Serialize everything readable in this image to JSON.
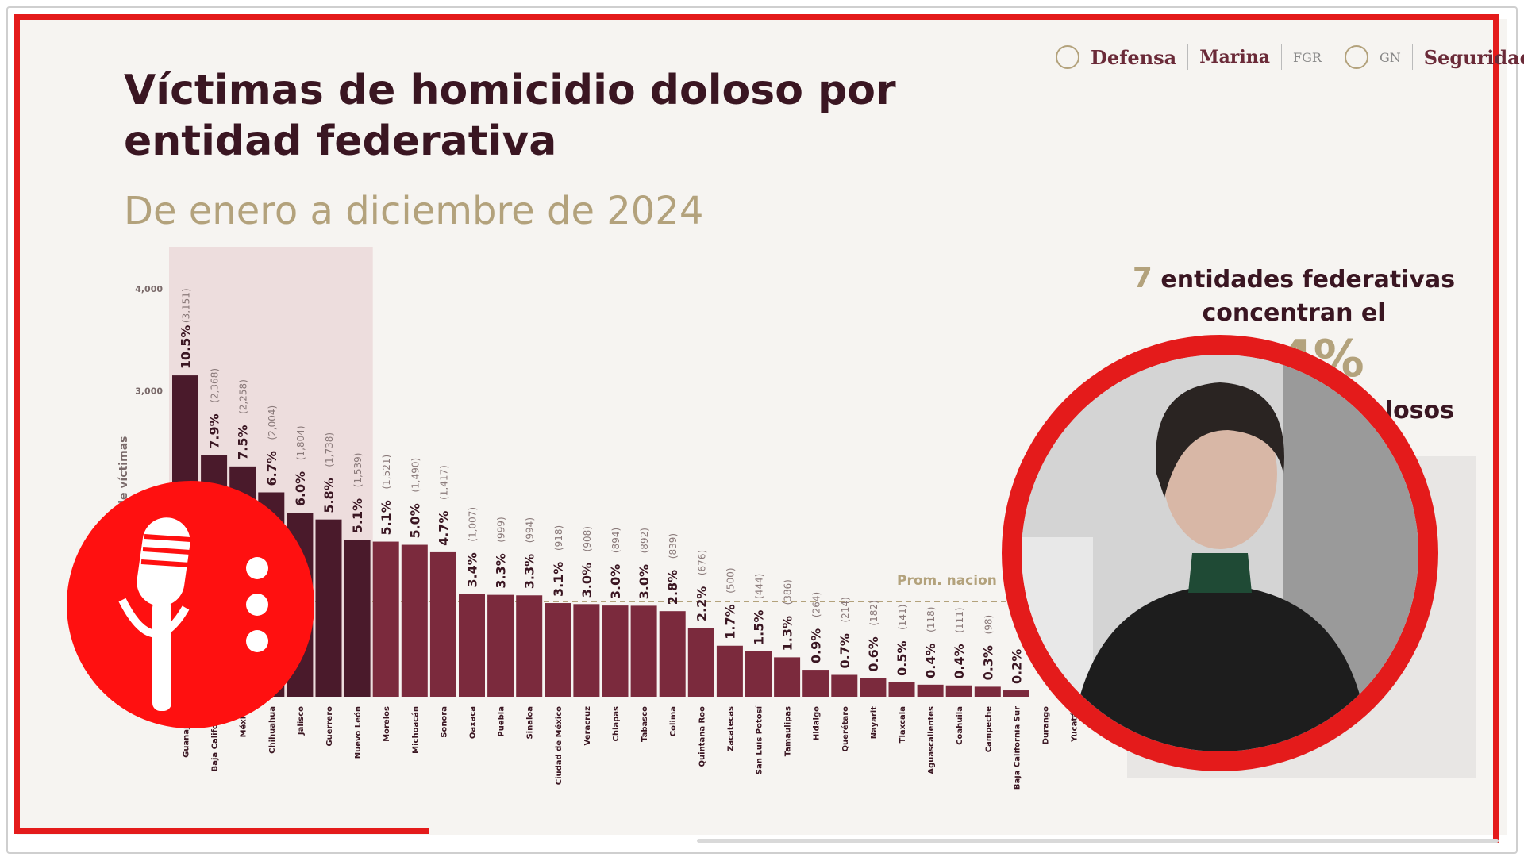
{
  "slide": {
    "title_line1": "Víctimas de homicidio doloso por",
    "title_line2": "entidad federativa",
    "subtitle": "De enero a diciembre de 2024"
  },
  "logos": {
    "defensa": "Defensa",
    "marina": "Marina",
    "fgr": "FGR",
    "gn": "GN",
    "seguridad": "Seguridad"
  },
  "side_panel": {
    "count": "7",
    "line1": "entidades federativas",
    "line2": "concentran el",
    "percent_partial": "2.4%",
    "line3_partial": "olosos"
  },
  "colors": {
    "bar_top7": "#4a1a2b",
    "bar_rest": "#7b2a3d",
    "highlight": "#e9d6d6",
    "title": "#3a1622",
    "accent_gold": "#b3a27c",
    "frame_red": "#e41b1b"
  },
  "icons": [
    "microphone-icon",
    "presenter-portrait"
  ],
  "chart_data": {
    "type": "bar",
    "ylabel": "de víctimas",
    "yticks": [
      3000,
      4000
    ],
    "ylim": [
      0,
      4000
    ],
    "avg_label": "Prom. nacion",
    "categories": [
      "Guanajuato",
      "Baja California",
      "México",
      "Chihuahua",
      "Jalisco",
      "Guerrero",
      "Nuevo León",
      "Morelos",
      "Michoacán",
      "Sonora",
      "Oaxaca",
      "Puebla",
      "Sinaloa",
      "Ciudad de México",
      "Veracruz",
      "Chiapas",
      "Tabasco",
      "Colima",
      "Quintana Roo",
      "Zacatecas",
      "San Luis Potosí",
      "Tamaulipas",
      "Hidalgo",
      "Querétaro",
      "Nayarit",
      "Tlaxcala",
      "Aguascalientes",
      "Coahuila",
      "Campeche",
      "Baja California Sur",
      "Durango",
      "Yucatán"
    ],
    "values": [
      3151,
      2368,
      2258,
      2004,
      1804,
      1738,
      1539,
      1521,
      1490,
      1417,
      1007,
      999,
      994,
      918,
      908,
      894,
      892,
      839,
      676,
      500,
      444,
      386,
      264,
      214,
      182,
      141,
      118,
      111,
      98,
      62,
      0,
      0
    ],
    "pct_labels": [
      "10.5%",
      "7.9%",
      "7.5%",
      "6.7%",
      "6.0%",
      "5.8%",
      "5.1%",
      "5.1%",
      "5.0%",
      "4.7%",
      "3.4%",
      "3.3%",
      "3.3%",
      "3.1%",
      "3.0%",
      "3.0%",
      "3.0%",
      "2.8%",
      "2.2%",
      "1.7%",
      "1.5%",
      "1.3%",
      "0.9%",
      "0.7%",
      "0.6%",
      "0.5%",
      "0.4%",
      "0.4%",
      "0.3%",
      "0.2%",
      "",
      ""
    ],
    "count_labels": [
      "(3,151)",
      "(2,368)",
      "(2,258)",
      "(2,004)",
      "(1,804)",
      "(1,738)",
      "(1,539)",
      "(1,521)",
      "(1,490)",
      "(1,417)",
      "(1,007)",
      "(999)",
      "(994)",
      "(918)",
      "(908)",
      "(894)",
      "(892)",
      "(839)",
      "(676)",
      "(500)",
      "(444)",
      "(386)",
      "(264)",
      "(214)",
      "(182)",
      "(141)",
      "(118)",
      "(111)",
      "(98)",
      "",
      "",
      ""
    ],
    "highlight_top": 7
  }
}
